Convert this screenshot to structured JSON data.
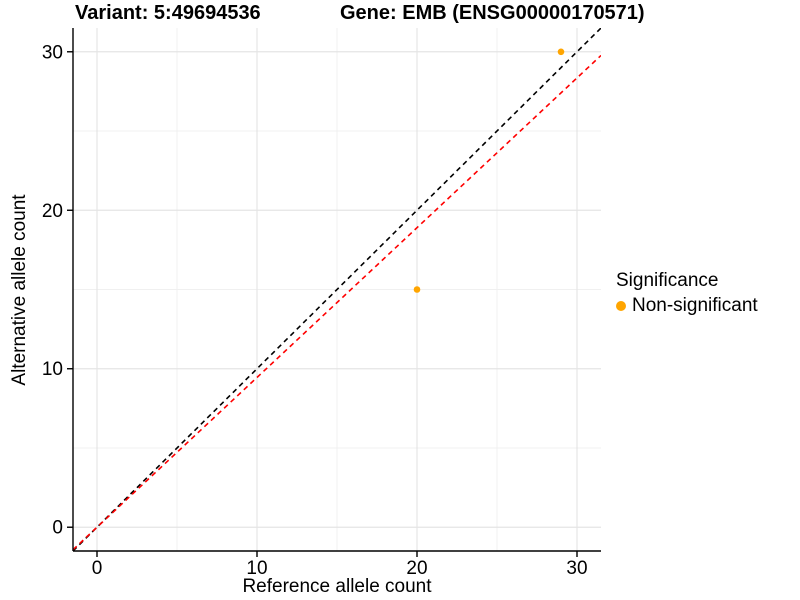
{
  "chart_data": {
    "type": "scatter",
    "title_left": "Variant: 5:49694536",
    "title_right": "Gene: EMB (ENSG00000170571)",
    "xlabel": "Reference allele count",
    "ylabel": "Alternative allele count",
    "xlim": [
      -1.5,
      31.5
    ],
    "ylim": [
      -1.5,
      31.5
    ],
    "xticks": [
      0,
      10,
      20,
      30
    ],
    "yticks": [
      0,
      10,
      20,
      30
    ],
    "minor_xticks": [
      5,
      15,
      25
    ],
    "minor_yticks": [
      5,
      15,
      25
    ],
    "grid": "major+minor",
    "series": [
      {
        "name": "Non-significant",
        "color": "#FFA500",
        "points": [
          [
            20,
            15
          ],
          [
            29,
            30
          ]
        ]
      }
    ],
    "reference_lines": [
      {
        "name": "identity",
        "slope": 1,
        "intercept": 0,
        "color": "#000000",
        "style": "dashed"
      },
      {
        "name": "allelic-ratio-fit",
        "slope": 0.945,
        "intercept": 0,
        "color": "#FF0000",
        "style": "dashed"
      }
    ],
    "legend": {
      "title": "Significance",
      "position": "right",
      "entries": [
        {
          "label": "Non-significant",
          "color": "#FFA500"
        }
      ]
    },
    "colors": {
      "grid_major": "#E5E5E5",
      "grid_minor": "#F0F0F0",
      "axis": "#000000",
      "text": "#000000"
    }
  }
}
